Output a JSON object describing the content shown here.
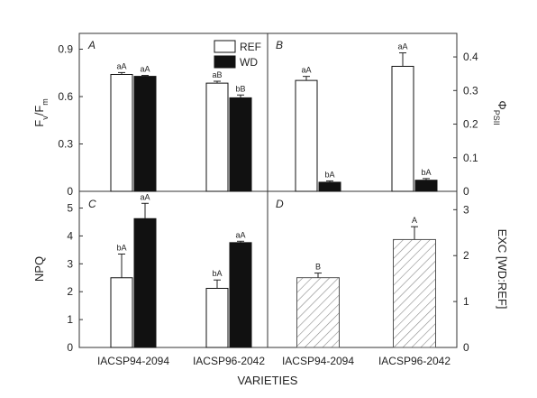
{
  "xlabel": "VARIETIES",
  "legend": [
    {
      "name": "REF",
      "color": "#ffffff"
    },
    {
      "name": "WD",
      "color": "#111111"
    }
  ],
  "chart_data": [
    {
      "panel": "A",
      "type": "bar",
      "side": "left",
      "ylabel": {
        "main": "F",
        "sub1": "v",
        "mid": "/F",
        "sub2": "m"
      },
      "ylim": [
        0,
        1.0
      ],
      "yticks": [
        "0",
        "0.3",
        "0.6",
        "0.9"
      ],
      "categories": [
        "IACSP94-2094",
        "IACSP96-2042"
      ],
      "series": [
        {
          "name": "REF",
          "values": [
            0.74,
            0.685
          ],
          "errors": [
            0.012,
            0.012
          ],
          "labels": [
            "aA",
            "aB"
          ]
        },
        {
          "name": "WD",
          "values": [
            0.728,
            0.592
          ],
          "errors": [
            0.006,
            0.018
          ],
          "labels": [
            "aA",
            "bB"
          ]
        }
      ]
    },
    {
      "panel": "B",
      "type": "bar",
      "side": "right",
      "ylabel": {
        "main": "Φ",
        "sub1": "PSII",
        "mid": "",
        "sub2": ""
      },
      "ylim": [
        0,
        0.47
      ],
      "yticks": [
        "0",
        "0.1",
        "0.2",
        "0.3",
        "0.4"
      ],
      "categories": [
        "IACSP94-2094",
        "IACSP96-2042"
      ],
      "series": [
        {
          "name": "REF",
          "values": [
            0.33,
            0.372
          ],
          "errors": [
            0.012,
            0.04
          ],
          "labels": [
            "aA",
            "aA"
          ]
        },
        {
          "name": "WD",
          "values": [
            0.027,
            0.033
          ],
          "errors": [
            0.004,
            0.005
          ],
          "labels": [
            "bA",
            "bA"
          ]
        }
      ]
    },
    {
      "panel": "C",
      "type": "bar",
      "side": "left",
      "ylabel": {
        "main": "NPQ",
        "sub1": "",
        "mid": "",
        "sub2": ""
      },
      "ylim": [
        0,
        5.6
      ],
      "yticks": [
        "0",
        "1",
        "2",
        "3",
        "4",
        "5"
      ],
      "categories": [
        "IACSP94-2094",
        "IACSP96-2042"
      ],
      "series": [
        {
          "name": "REF",
          "values": [
            2.5,
            2.12
          ],
          "errors": [
            0.85,
            0.3
          ],
          "labels": [
            "bA",
            "bA"
          ]
        },
        {
          "name": "WD",
          "values": [
            4.62,
            3.76
          ],
          "errors": [
            0.55,
            0.05
          ],
          "labels": [
            "aA",
            "aA"
          ]
        }
      ]
    },
    {
      "panel": "D",
      "type": "bar",
      "side": "right",
      "ylabel": {
        "main": "EXC [WD:REF]",
        "sub1": "",
        "mid": "",
        "sub2": ""
      },
      "ylim": [
        0,
        3.4
      ],
      "yticks": [
        "0",
        "1",
        "2",
        "3"
      ],
      "categories": [
        "IACSP94-2094",
        "IACSP96-2042"
      ],
      "series": [
        {
          "name": "WD:REF",
          "values": [
            1.52,
            2.35
          ],
          "errors": [
            0.1,
            0.28
          ],
          "labels": [
            "B",
            "A"
          ]
        }
      ]
    }
  ]
}
